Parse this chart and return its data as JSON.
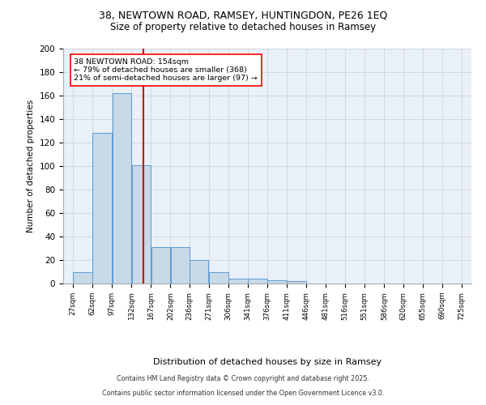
{
  "title_line1": "38, NEWTOWN ROAD, RAMSEY, HUNTINGDON, PE26 1EQ",
  "title_line2": "Size of property relative to detached houses in Ramsey",
  "xlabel": "Distribution of detached houses by size in Ramsey",
  "ylabel": "Number of detached properties",
  "bin_labels": [
    "27sqm",
    "62sqm",
    "97sqm",
    "132sqm",
    "167sqm",
    "202sqm",
    "236sqm",
    "271sqm",
    "306sqm",
    "341sqm",
    "376sqm",
    "411sqm",
    "446sqm",
    "481sqm",
    "516sqm",
    "551sqm",
    "586sqm",
    "620sqm",
    "655sqm",
    "690sqm",
    "725sqm"
  ],
  "bin_edges": [
    27,
    62,
    97,
    132,
    167,
    202,
    236,
    271,
    306,
    341,
    376,
    411,
    446,
    481,
    516,
    551,
    586,
    620,
    655,
    690,
    725
  ],
  "bar_values": [
    10,
    128,
    162,
    101,
    31,
    31,
    20,
    10,
    4,
    4,
    3,
    2,
    0,
    0,
    0,
    0,
    0,
    0,
    0,
    0
  ],
  "bar_color": "#c8d9e8",
  "bar_edge_color": "#5b9bd5",
  "red_line_x": 154,
  "annotation_text": "38 NEWTOWN ROAD: 154sqm\n← 79% of detached houses are smaller (368)\n21% of semi-detached houses are larger (97) →",
  "annotation_box_color": "white",
  "annotation_box_edge": "red",
  "red_line_color": "#cc0000",
  "grid_color": "#d0d8e4",
  "bg_color": "#eaf0f8",
  "ylim": [
    0,
    200
  ],
  "yticks": [
    0,
    20,
    40,
    60,
    80,
    100,
    120,
    140,
    160,
    180,
    200
  ],
  "footer_line1": "Contains HM Land Registry data © Crown copyright and database right 2025.",
  "footer_line2": "Contains public sector information licensed under the Open Government Licence v3.0."
}
